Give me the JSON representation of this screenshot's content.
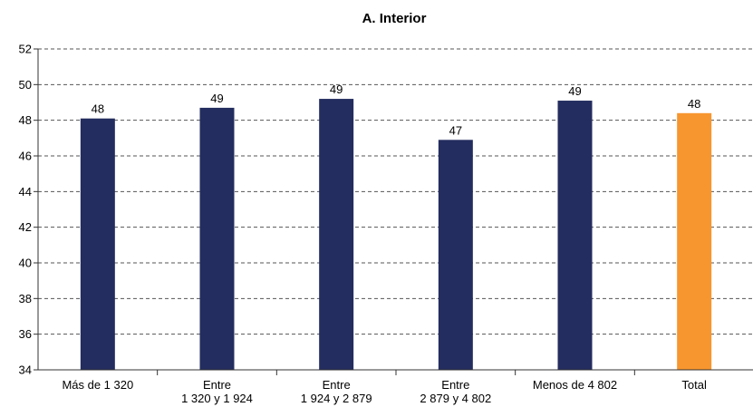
{
  "chart_data": {
    "type": "bar",
    "title": "A. Interior",
    "categories": [
      [
        "Más de 1 320"
      ],
      [
        "Entre",
        "1 320 y 1 924"
      ],
      [
        "Entre",
        "1 924 y 2 879"
      ],
      [
        "Entre",
        "2 879 y 4 802"
      ],
      [
        "Menos de 4 802"
      ],
      [
        "Total"
      ]
    ],
    "values": [
      48.1,
      48.7,
      49.2,
      46.9,
      49.1,
      48.4
    ],
    "data_labels": [
      "48",
      "49",
      "49",
      "47",
      "49",
      "48"
    ],
    "colors": [
      "#232d5f",
      "#232d5f",
      "#232d5f",
      "#232d5f",
      "#232d5f",
      "#f7962f"
    ],
    "ylim": [
      34,
      52
    ],
    "yticks": [
      34,
      36,
      38,
      40,
      42,
      44,
      46,
      48,
      50,
      52
    ],
    "grid": true,
    "xlabel": "",
    "ylabel": ""
  }
}
